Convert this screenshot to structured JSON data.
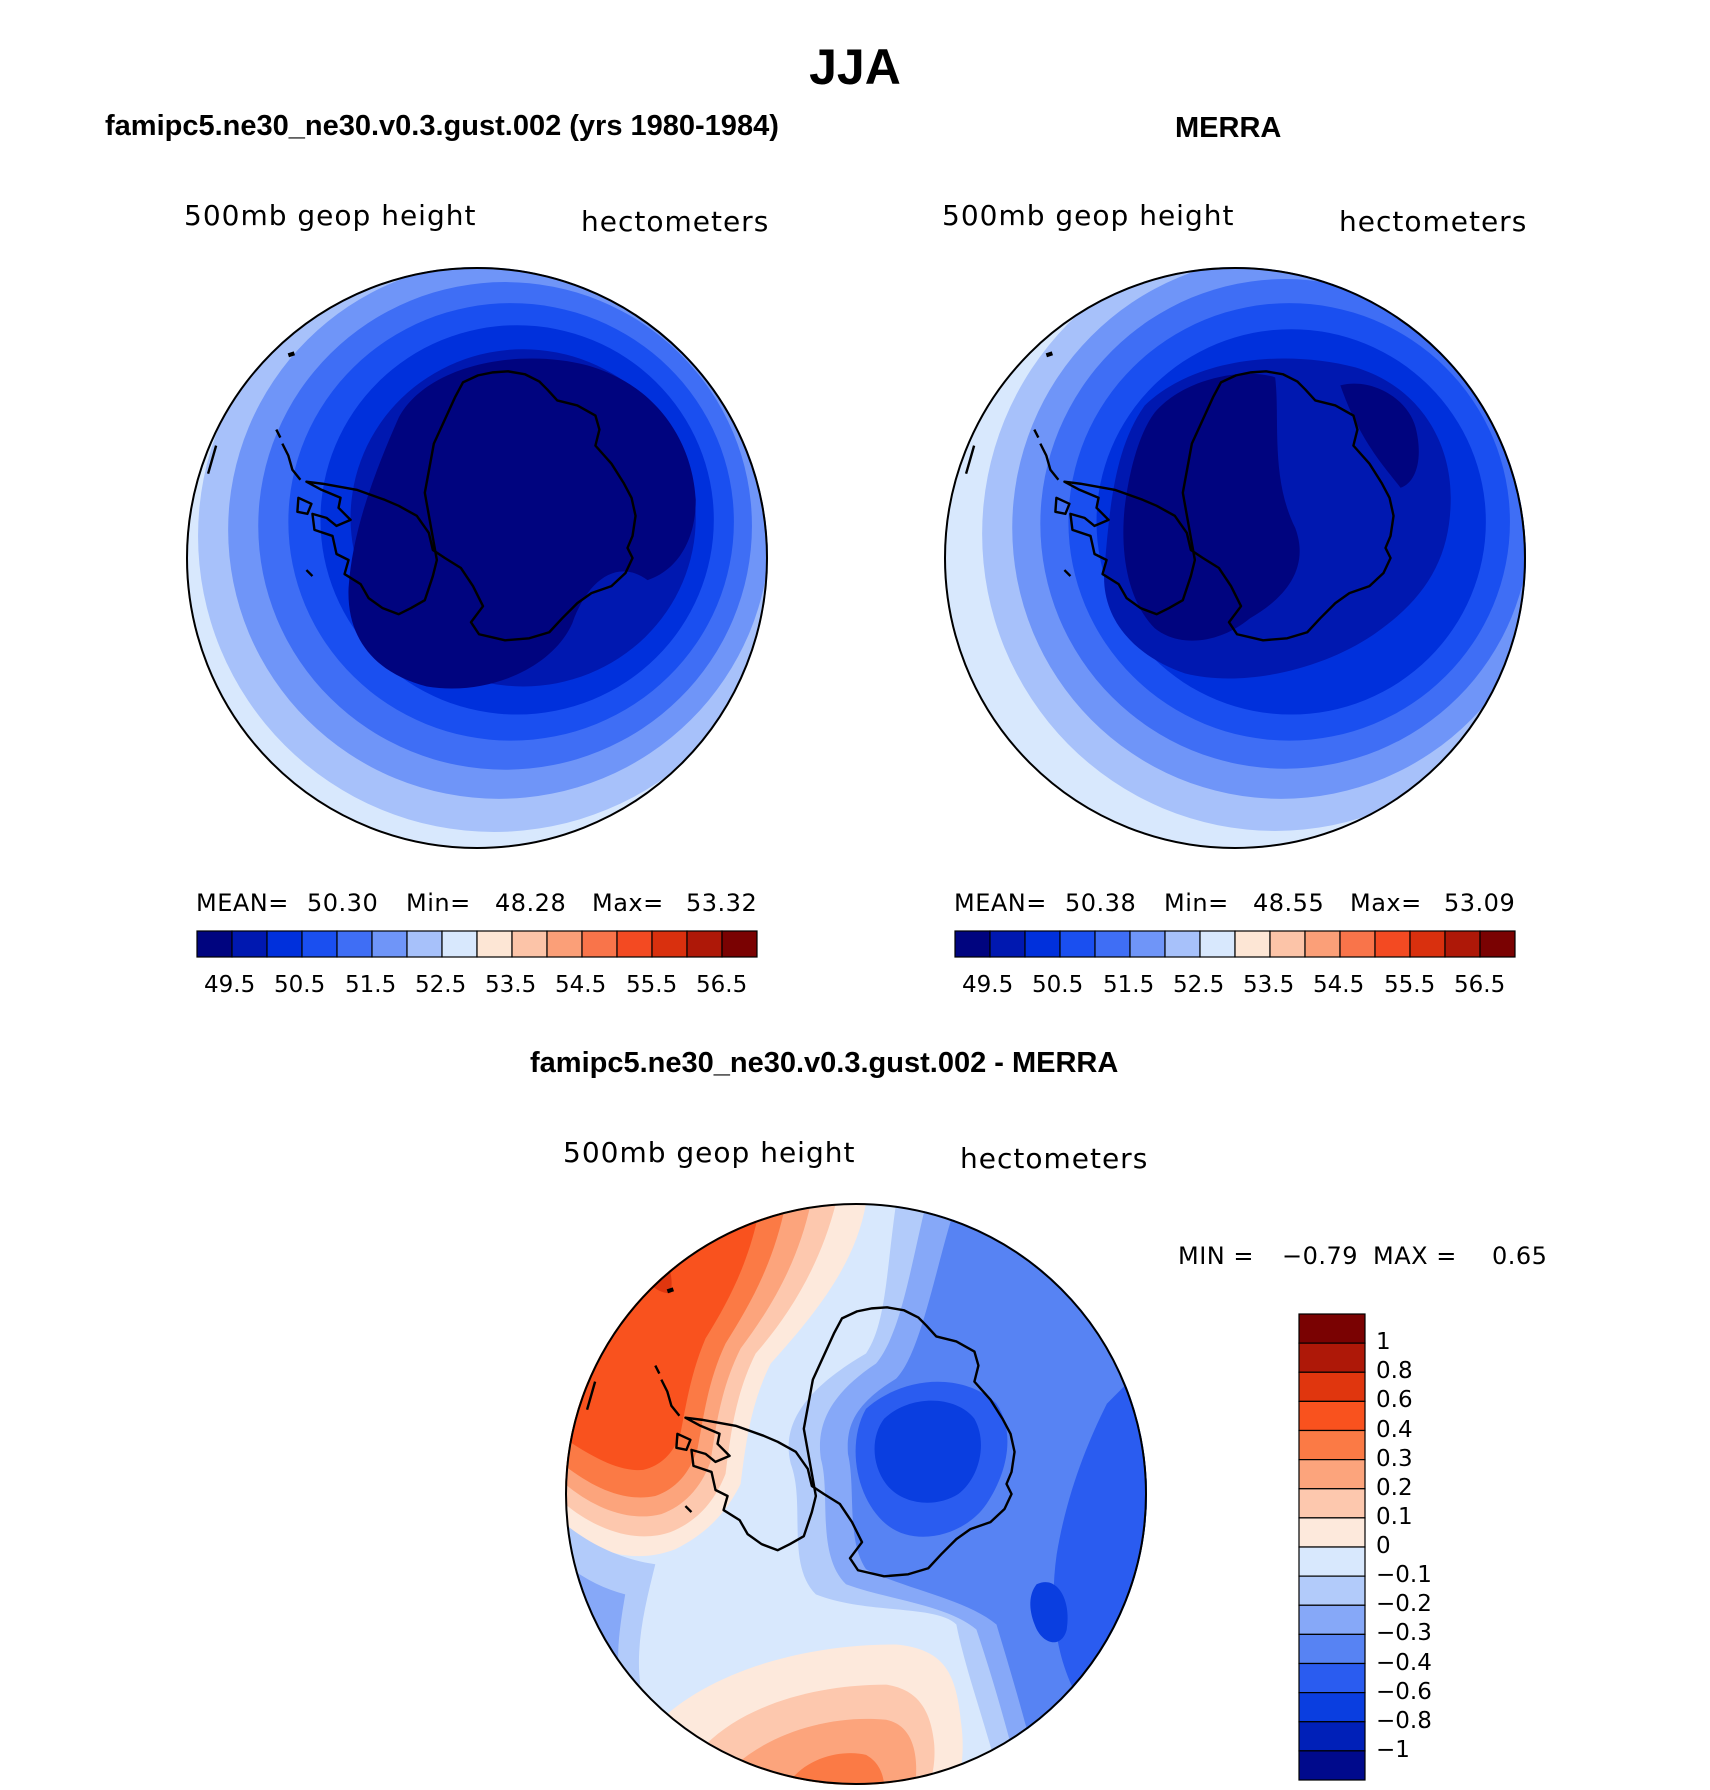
{
  "header": {
    "title": "JJA"
  },
  "chart_data": [
    {
      "type": "heatmap",
      "projection": "south-polar-stereographic",
      "title": "famipc5.ne30_ne30.v0.3.gust.002 (yrs 1980-1984)",
      "variable": "500mb  geop  height",
      "units": "hectometers",
      "stats": {
        "mean_label": "MEAN=",
        "mean": "50.30",
        "min_label": "Min=",
        "min": "48.28",
        "max_label": "Max=",
        "max": "53.32"
      },
      "colorbar": {
        "orientation": "horizontal",
        "levels": [
          49.5,
          50,
          50.5,
          51,
          51.5,
          52,
          52.5,
          53,
          53.5,
          54,
          54.5,
          55,
          55.5,
          56,
          56.5
        ],
        "tick_labels": [
          "49.5",
          "50.5",
          "51.5",
          "52.5",
          "53.5",
          "54.5",
          "55.5",
          "56.5"
        ],
        "colors": [
          "#00047f",
          "#0018b0",
          "#0030dc",
          "#1a4ff0",
          "#3f6ef5",
          "#6f95f8",
          "#a7c1fa",
          "#d8e8fd",
          "#fde6d5",
          "#fcc4a8",
          "#fb9f78",
          "#f9744a",
          "#f34a22",
          "#d9300e",
          "#ae1808",
          "#7a0202"
        ]
      }
    },
    {
      "type": "heatmap",
      "projection": "south-polar-stereographic",
      "title": "MERRA",
      "variable": "500mb  geop  height",
      "units": "hectometers",
      "stats": {
        "mean_label": "MEAN=",
        "mean": "50.38",
        "min_label": "Min=",
        "min": "48.55",
        "max_label": "Max=",
        "max": "53.09"
      },
      "colorbar": {
        "orientation": "horizontal",
        "levels": [
          49.5,
          50,
          50.5,
          51,
          51.5,
          52,
          52.5,
          53,
          53.5,
          54,
          54.5,
          55,
          55.5,
          56,
          56.5
        ],
        "tick_labels": [
          "49.5",
          "50.5",
          "51.5",
          "52.5",
          "53.5",
          "54.5",
          "55.5",
          "56.5"
        ],
        "colors": [
          "#00047f",
          "#0018b0",
          "#0030dc",
          "#1a4ff0",
          "#3f6ef5",
          "#6f95f8",
          "#a7c1fa",
          "#d8e8fd",
          "#fde6d5",
          "#fcc4a8",
          "#fb9f78",
          "#f9744a",
          "#f34a22",
          "#d9300e",
          "#ae1808",
          "#7a0202"
        ]
      }
    },
    {
      "type": "heatmap",
      "projection": "south-polar-stereographic",
      "title": "famipc5.ne30_ne30.v0.3.gust.002 - MERRA",
      "variable": "500mb  geop  height",
      "units": "hectometers",
      "stats": {
        "min_label": "MIN =",
        "min": "−0.79",
        "max_label": "MAX =",
        "max": "0.65"
      },
      "colorbar": {
        "orientation": "vertical",
        "tick_labels": [
          "1",
          "0.8",
          "0.6",
          "0.4",
          "0.3",
          "0.2",
          "0.1",
          "0",
          "−0.1",
          "−0.2",
          "−0.3",
          "−0.4",
          "−0.6",
          "−0.8",
          "−1"
        ],
        "colors": [
          "#7a0202",
          "#ae1808",
          "#e0360e",
          "#f9521e",
          "#fb7a45",
          "#fca47c",
          "#fdc8ae",
          "#fde9dc",
          "#d8e8fd",
          "#b2cbfa",
          "#86a8f8",
          "#5783f3",
          "#2a5cf0",
          "#0a3ee0",
          "#0020b8",
          "#000a8c"
        ]
      }
    }
  ]
}
